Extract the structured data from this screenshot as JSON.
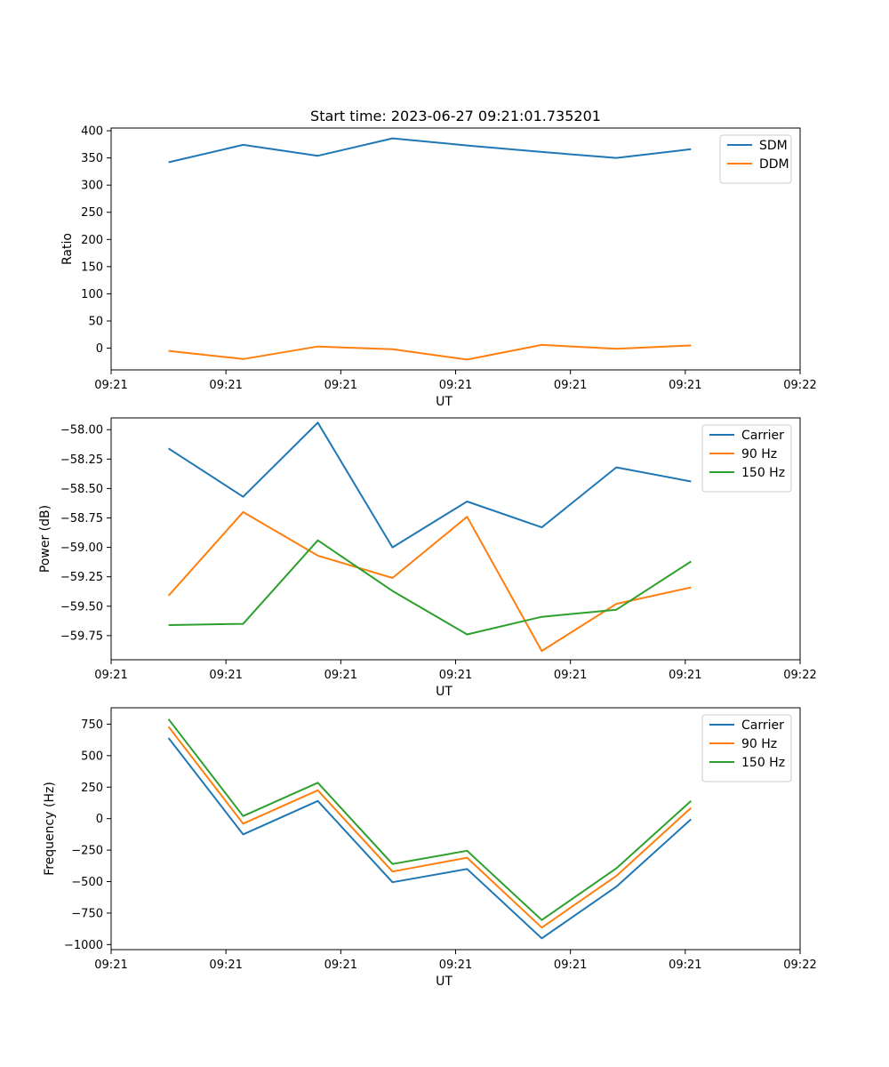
{
  "chart_data": [
    {
      "type": "line",
      "title": "Start time: 2023-06-27 09:21:01.735201",
      "xlabel": "UT",
      "ylabel": "Ratio",
      "xlim": [
        0,
        3.0
      ],
      "ylim": [
        -40,
        405
      ],
      "x": [
        0.25,
        0.575,
        0.9,
        1.225,
        1.55,
        1.875,
        2.2,
        2.525
      ],
      "xticks": [
        0.0,
        0.5,
        1.0,
        1.5,
        2.0,
        2.5,
        3.0
      ],
      "xtick_labels": [
        "09:21",
        "09:21",
        "09:21",
        "09:21",
        "09:21",
        "09:21",
        "09:21"
      ],
      "xtick_last_label": "09:22",
      "yticks": [
        0,
        50,
        100,
        150,
        200,
        250,
        300,
        350,
        400
      ],
      "ytick_labels": [
        "0",
        "50",
        "100",
        "150",
        "200",
        "250",
        "300",
        "350",
        "400"
      ],
      "legend_position": "top-right",
      "series": [
        {
          "name": "SDM",
          "color": "#1f77b4",
          "values": [
            342,
            374,
            354,
            386,
            373,
            361,
            350,
            366
          ]
        },
        {
          "name": "DDM",
          "color": "#ff7f0e",
          "values": [
            -5,
            -20,
            3,
            -2,
            -21,
            6,
            -1,
            5
          ]
        }
      ]
    },
    {
      "type": "line",
      "title": "",
      "xlabel": "UT",
      "ylabel": "Power (dB)",
      "xlim": [
        0,
        3.0
      ],
      "ylim": [
        -59.955,
        -57.9
      ],
      "x": [
        0.25,
        0.575,
        0.9,
        1.225,
        1.55,
        1.875,
        2.2,
        2.525
      ],
      "xticks": [
        0.0,
        0.5,
        1.0,
        1.5,
        2.0,
        2.5,
        3.0
      ],
      "xtick_labels": [
        "09:21",
        "09:21",
        "09:21",
        "09:21",
        "09:21",
        "09:21",
        "09:21"
      ],
      "xtick_last_label": "09:22",
      "yticks": [
        -58.0,
        -58.25,
        -58.5,
        -58.75,
        -59.0,
        -59.25,
        -59.5,
        -59.75
      ],
      "ytick_labels": [
        "−58.00",
        "−58.25",
        "−58.50",
        "−58.75",
        "−59.00",
        "−59.25",
        "−59.50",
        "−59.75"
      ],
      "legend_position": "top-right",
      "series": [
        {
          "name": "Carrier",
          "color": "#1f77b4",
          "values": [
            -58.16,
            -58.57,
            -57.94,
            -59.0,
            -58.61,
            -58.83,
            -58.32,
            -58.44
          ]
        },
        {
          "name": "90 Hz",
          "color": "#ff7f0e",
          "values": [
            -59.41,
            -58.7,
            -59.07,
            -59.26,
            -58.74,
            -59.88,
            -59.48,
            -59.34
          ]
        },
        {
          "name": "150 Hz",
          "color": "#2ca02c",
          "values": [
            -59.66,
            -59.65,
            -58.94,
            -59.37,
            -59.74,
            -59.59,
            -59.53,
            -59.12
          ]
        }
      ]
    },
    {
      "type": "line",
      "title": "",
      "xlabel": "UT",
      "ylabel": "Frequency (Hz)",
      "xlim": [
        0,
        3.0
      ],
      "ylim": [
        -1040,
        880
      ],
      "x": [
        0.25,
        0.575,
        0.9,
        1.225,
        1.55,
        1.875,
        2.2,
        2.525
      ],
      "xticks": [
        0.0,
        0.5,
        1.0,
        1.5,
        2.0,
        2.5,
        3.0
      ],
      "xtick_labels": [
        "09:21",
        "09:21",
        "09:21",
        "09:21",
        "09:21",
        "09:21",
        "09:21"
      ],
      "xtick_last_label": "09:22",
      "yticks": [
        750,
        500,
        250,
        0,
        -250,
        -500,
        -750,
        -1000
      ],
      "ytick_labels": [
        "750",
        "500",
        "250",
        "0",
        "−250",
        "−500",
        "−750",
        "−1000"
      ],
      "legend_position": "top-right",
      "series": [
        {
          "name": "Carrier",
          "color": "#1f77b4",
          "values": [
            640,
            -125,
            140,
            -505,
            -400,
            -950,
            -540,
            -5
          ]
        },
        {
          "name": "90 Hz",
          "color": "#ff7f0e",
          "values": [
            730,
            -40,
            225,
            -420,
            -310,
            -865,
            -455,
            85
          ]
        },
        {
          "name": "150 Hz",
          "color": "#2ca02c",
          "values": [
            790,
            20,
            285,
            -360,
            -255,
            -805,
            -395,
            140
          ]
        }
      ]
    }
  ]
}
